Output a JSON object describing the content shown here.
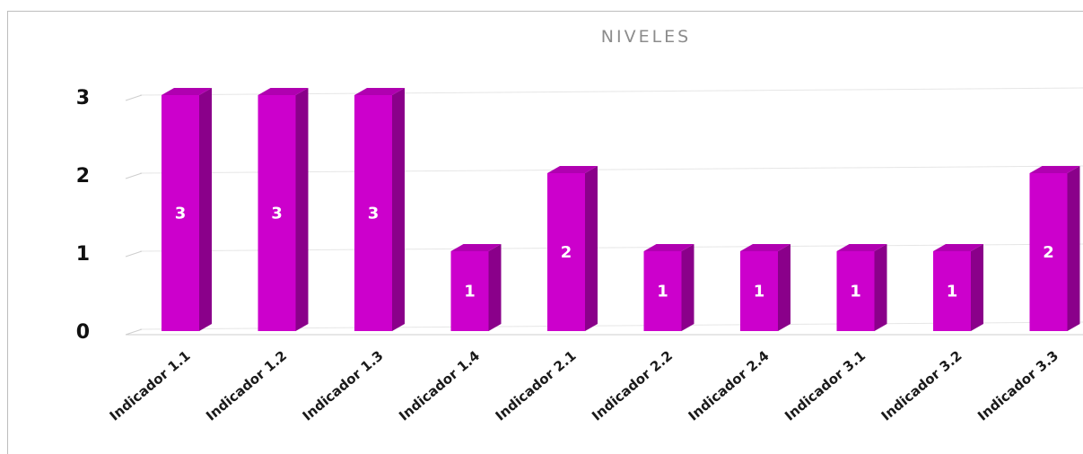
{
  "chart_data": {
    "type": "bar",
    "title": "NIVELES",
    "categories": [
      "Indicador 1.1",
      "Indicador 1.2",
      "Indicador 1.3",
      "Indicador 1.4",
      "Indicador 2.1",
      "Indicador 2.2",
      "Indicador 2.4",
      "Indicador 3.1",
      "Indicador 3.2",
      "Indicador 3.3"
    ],
    "values": [
      3,
      3,
      3,
      1,
      2,
      1,
      1,
      1,
      1,
      2
    ],
    "ylim": [
      0,
      3
    ],
    "yticks": [
      0,
      1,
      2,
      3
    ],
    "grid": true,
    "data_labels": true,
    "colors": {
      "bar_front": "#cc00cc",
      "bar_side": "#8a008a",
      "bar_top": "#b000b0"
    }
  }
}
